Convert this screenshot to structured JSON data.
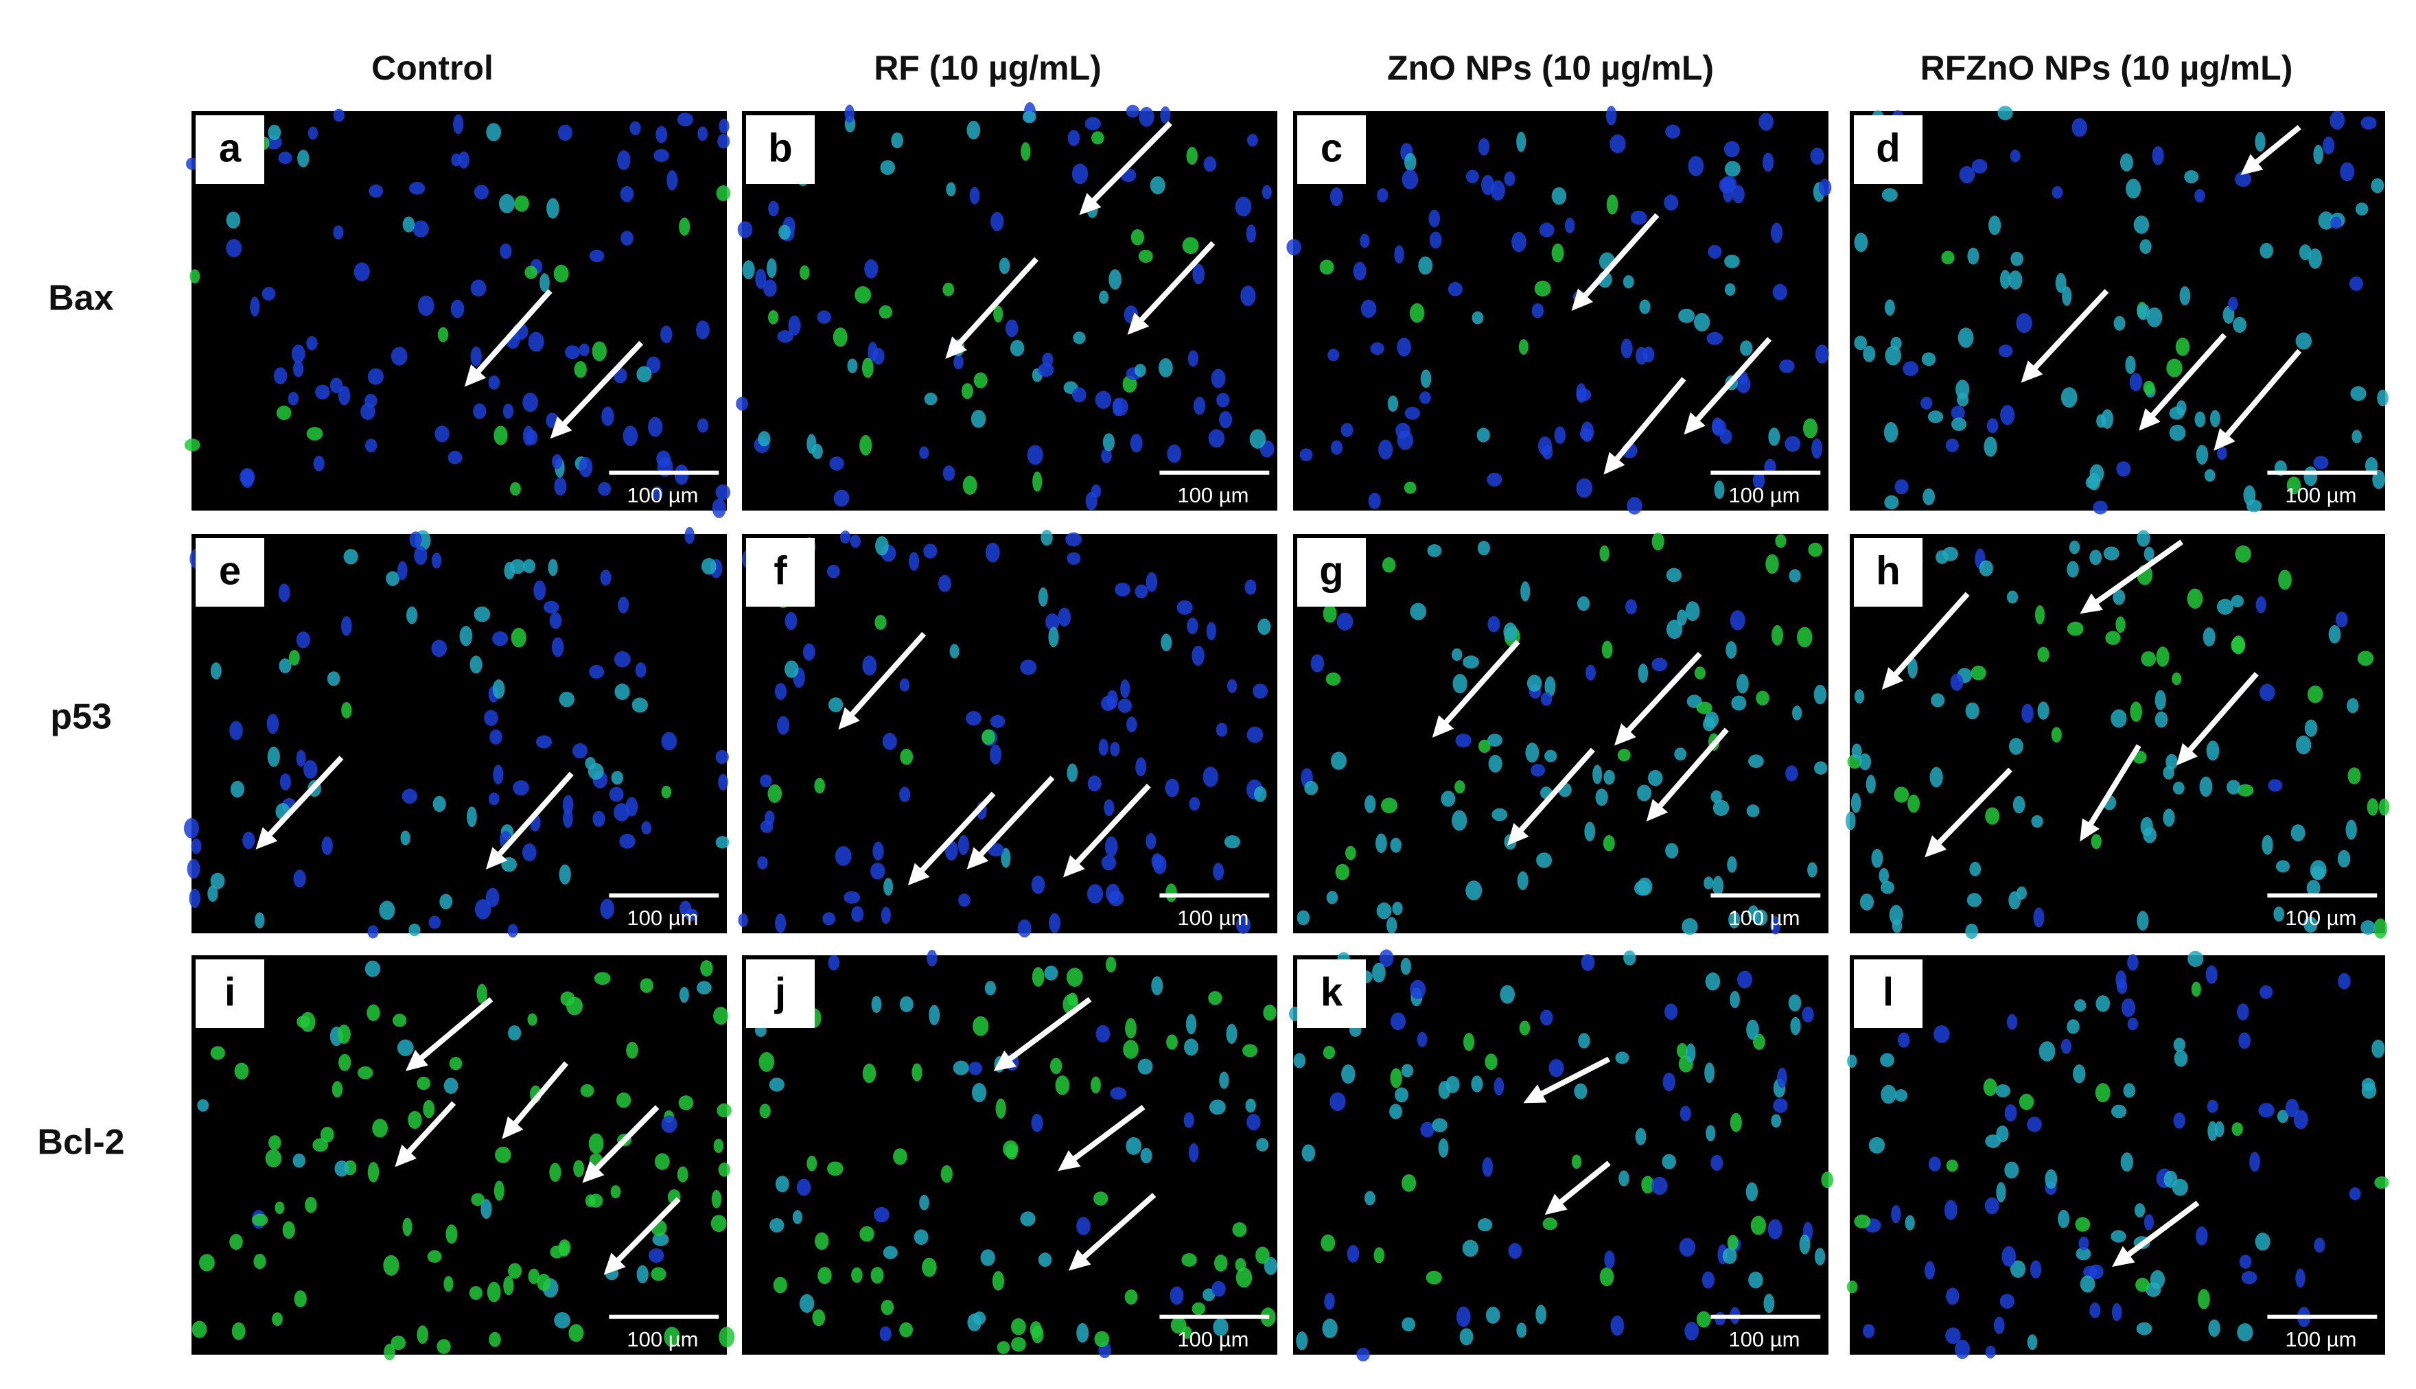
{
  "column_headers": [
    "Control",
    "RF (10 µg/mL)",
    "ZnO NPs (10 µg/mL)",
    "RFZnO NPs (10 µg/mL)"
  ],
  "row_labels": [
    "Bax",
    "p53",
    "Bcl-2"
  ],
  "panels": [
    {
      "letter": "a",
      "scale_bar": "100 µm"
    },
    {
      "letter": "b",
      "scale_bar": "100 µm"
    },
    {
      "letter": "c",
      "scale_bar": "100 µm"
    },
    {
      "letter": "d",
      "scale_bar": "100 µm"
    },
    {
      "letter": "e",
      "scale_bar": "100 µm"
    },
    {
      "letter": "f",
      "scale_bar": "100 µm"
    },
    {
      "letter": "g",
      "scale_bar": "100 µm"
    },
    {
      "letter": "h",
      "scale_bar": "100 µm"
    },
    {
      "letter": "i",
      "scale_bar": "100 µm"
    },
    {
      "letter": "j",
      "scale_bar": "100 µm"
    },
    {
      "letter": "k",
      "scale_bar": "100 µm"
    },
    {
      "letter": "l",
      "scale_bar": "100 µm"
    }
  ]
}
